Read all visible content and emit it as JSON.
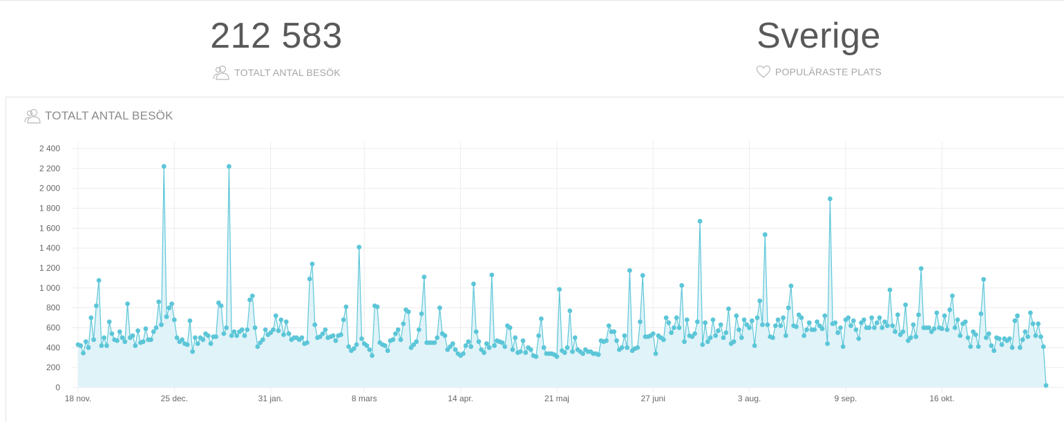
{
  "stats": {
    "total_visits": {
      "value": "212 583",
      "label": "TOTALT ANTAL BESÖK",
      "icon": "users-icon"
    },
    "popular_place": {
      "value": "Sverige",
      "label": "POPULÄRASTE PLATS",
      "icon": "heart-icon"
    }
  },
  "chart_panel": {
    "title": "TOTALT ANTAL BESÖK",
    "icon": "users-icon"
  },
  "colors": {
    "line": "#5cc6d8",
    "area": "#e0f3f8",
    "grid": "#ececec"
  },
  "chart_data": {
    "type": "area",
    "ylim": [
      0,
      2400
    ],
    "y_ticks": [
      0,
      200,
      400,
      600,
      800,
      1000,
      1200,
      1400,
      1600,
      1800,
      2000,
      2200,
      2400
    ],
    "y_tick_labels": [
      "0",
      "200",
      "400",
      "600",
      "800",
      "1 000",
      "1 200",
      "1 400",
      "1 600",
      "1 800",
      "2 000",
      "2 200",
      "2 400"
    ],
    "x_tick_labels": [
      "18 nov.",
      "25 dec.",
      "31 jan.",
      "8 mars",
      "14 apr.",
      "21 maj",
      "27 juni",
      "3 aug.",
      "9 sep.",
      "16 okt."
    ],
    "x_tick_offsets_days": [
      0,
      37,
      74,
      110,
      147,
      184,
      221,
      258,
      295,
      332
    ],
    "grid": true,
    "legend": "none",
    "series": [
      {
        "values": [
          430,
          420,
          345,
          460,
          400,
          700,
          480,
          820,
          1075,
          420,
          500,
          420,
          660,
          540,
          480,
          470,
          560,
          500,
          460,
          840,
          500,
          520,
          420,
          570,
          450,
          460,
          590,
          480,
          480,
          560,
          600,
          860,
          630,
          2220,
          710,
          800,
          840,
          680,
          500,
          460,
          480,
          440,
          430,
          670,
          360,
          500,
          440,
          500,
          480,
          540,
          520,
          440,
          510,
          510,
          850,
          820,
          540,
          600,
          2220,
          520,
          560,
          520,
          560,
          580,
          520,
          580,
          880,
          920,
          600,
          410,
          450,
          480,
          580,
          530,
          550,
          580,
          720,
          570,
          680,
          530,
          660,
          540,
          480,
          500,
          500,
          480,
          500,
          440,
          450,
          1090,
          1240,
          630,
          500,
          510,
          540,
          580,
          500,
          510,
          520,
          470,
          520,
          530,
          680,
          810,
          410,
          370,
          390,
          430,
          1410,
          490,
          440,
          420,
          380,
          320,
          820,
          810,
          450,
          430,
          420,
          370,
          470,
          480,
          540,
          580,
          480,
          640,
          780,
          760,
          400,
          430,
          460,
          580,
          740,
          1110,
          450,
          450,
          450,
          450,
          500,
          800,
          540,
          520,
          380,
          410,
          440,
          380,
          340,
          320,
          340,
          420,
          460,
          410,
          1040,
          560,
          460,
          380,
          350,
          440,
          400,
          1130,
          420,
          470,
          460,
          450,
          410,
          620,
          600,
          380,
          500,
          350,
          360,
          470,
          350,
          400,
          380,
          320,
          310,
          520,
          690,
          400,
          340,
          340,
          340,
          330,
          310,
          985,
          370,
          350,
          400,
          770,
          360,
          500,
          380,
          360,
          340,
          380,
          360,
          360,
          340,
          340,
          330,
          470,
          460,
          470,
          620,
          560,
          560,
          470,
          380,
          400,
          520,
          400,
          1175,
          370,
          390,
          400,
          660,
          1125,
          510,
          510,
          520,
          540,
          340,
          520,
          500,
          480,
          700,
          650,
          550,
          600,
          700,
          600,
          1025,
          460,
          680,
          520,
          510,
          540,
          660,
          1670,
          430,
          650,
          460,
          500,
          680,
          520,
          570,
          630,
          500,
          550,
          790,
          440,
          460,
          720,
          580,
          500,
          680,
          630,
          600,
          670,
          420,
          700,
          870,
          630,
          1535,
          630,
          510,
          500,
          620,
          680,
          620,
          700,
          520,
          800,
          1020,
          620,
          610,
          730,
          700,
          520,
          580,
          650,
          580,
          580,
          660,
          620,
          590,
          720,
          440,
          1895,
          640,
          650,
          550,
          600,
          410,
          680,
          700,
          620,
          670,
          580,
          490,
          650,
          680,
          600,
          600,
          700,
          600,
          650,
          700,
          600,
          660,
          620,
          980,
          620,
          560,
          730,
          530,
          560,
          830,
          470,
          500,
          630,
          510,
          730,
          1195,
          600,
          600,
          600,
          560,
          590,
          750,
          600,
          590,
          720,
          580,
          780,
          920,
          600,
          680,
          520,
          640,
          660,
          500,
          410,
          560,
          530,
          410,
          740,
          1085,
          500,
          540,
          420,
          370,
          500,
          490,
          430,
          490,
          470,
          490,
          400,
          670,
          720,
          400,
          480,
          560,
          510,
          750,
          640,
          520,
          640,
          510,
          410,
          20
        ]
      }
    ]
  }
}
